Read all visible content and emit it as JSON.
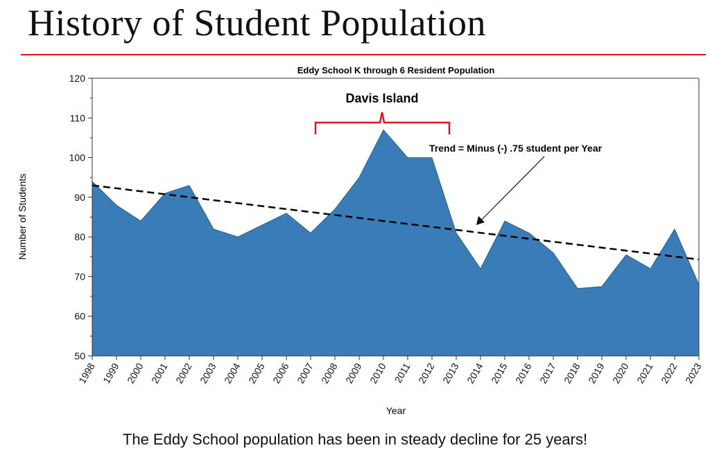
{
  "slide": {
    "title": "History of Student Population",
    "caption": "The Eddy School population has been in steady decline for 25 years!"
  },
  "colors": {
    "area": "#3a7cb8",
    "rule": "#d9141b",
    "brace": "#e0161b"
  },
  "chart_data": {
    "type": "area",
    "title": "Eddy School K through 6 Resident Population",
    "xlabel": "Year",
    "ylabel": "Number of Students",
    "ylim": [
      50,
      120
    ],
    "yticks": [
      50,
      60,
      70,
      80,
      90,
      100,
      110,
      120
    ],
    "grid": false,
    "x": [
      "1998",
      "1999",
      "2000",
      "2001",
      "2002",
      "2003",
      "2004",
      "2005",
      "2006",
      "2007",
      "2008",
      "2009",
      "2010",
      "2011",
      "2012",
      "2013",
      "2014",
      "2015",
      "2016",
      "2017",
      "2018",
      "2019",
      "2020",
      "2021",
      "2022",
      "2023"
    ],
    "series": [
      {
        "values": [
          94,
          88,
          84,
          91,
          93,
          82,
          80,
          83,
          86,
          81,
          87,
          95,
          107,
          100,
          100,
          81,
          72,
          84,
          81,
          76,
          67,
          67.5,
          75.5,
          72,
          82,
          68
        ]
      }
    ],
    "trend": {
      "start": 93,
      "end": 74.3
    },
    "annotations": [
      {
        "text": "Davis Island",
        "from": "2007",
        "to": "2013"
      },
      {
        "text": "Trend = Minus (-) .75 student per Year"
      }
    ]
  }
}
